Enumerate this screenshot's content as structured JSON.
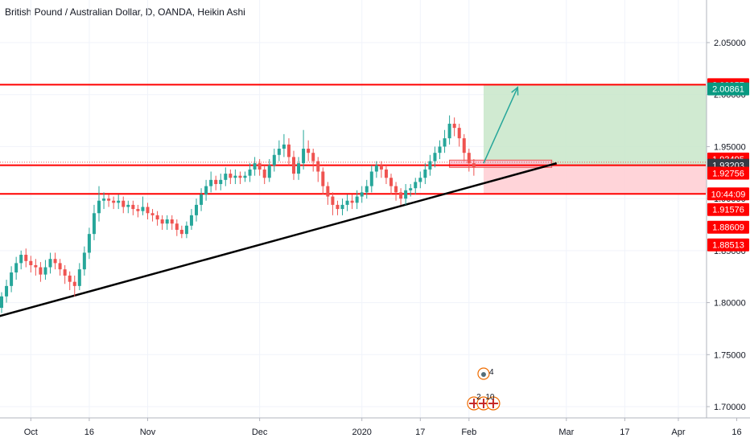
{
  "header": {
    "title": "British Pound / Australian Dollar, D, OANDA, Heikin Ashi"
  },
  "colors": {
    "up": "#26a69a",
    "down": "#ef5350",
    "grid": "#f0f3fa",
    "level": "#ff0000",
    "trend": "#000000",
    "profit_zone": "#c8e6c9",
    "loss_zone": "#ffcdd2",
    "arrow": "#26a69a"
  },
  "chart_data": {
    "type": "candlestick",
    "title": "British Pound / Australian Dollar, D, OANDA, Heikin Ashi",
    "ylim": [
      1.685,
      2.1
    ],
    "y_ticks": [
      "1.70000",
      "1.75000",
      "1.80000",
      "1.85000",
      "1.90000",
      "1.95000",
      "2.00000",
      "2.05000"
    ],
    "y_tick_values": [
      1.7,
      1.75,
      1.8,
      1.85,
      1.9,
      1.95,
      2.0,
      2.05
    ],
    "x_ticks": [
      "Oct",
      "16",
      "Nov",
      "Dec",
      "2020",
      "17",
      "Feb",
      "Mar",
      "17",
      "Apr",
      "16"
    ],
    "x_tick_days": [
      6,
      18,
      30,
      53,
      74,
      86,
      96,
      116,
      128,
      139,
      151
    ],
    "horizontal_levels": [
      2.00957,
      1.93203,
      1.90453
    ],
    "price_labels": [
      {
        "value": "2.00957",
        "y": 2.00957,
        "bg": "#ff0000",
        "fg": "#ffffff"
      },
      {
        "value": "2.00861",
        "y": 2.00861,
        "bg": "#089981",
        "fg": "#ffffff",
        "shift": 1
      },
      {
        "value": "1.93495",
        "y": 1.93495,
        "bg": "#ff0000",
        "fg": "#ffffff",
        "shift": -1
      },
      {
        "value": "1.93203",
        "y": 1.93203,
        "bg": "#363a45",
        "fg": "#ffffff"
      },
      {
        "value": "1.92756",
        "y": 1.92756,
        "bg": "#ff0000",
        "fg": "#ffffff",
        "shift": 1
      },
      {
        "value": "10:44:09",
        "y": 1.90453,
        "bg": "#ff0000",
        "fg": "#ffffff"
      },
      {
        "value": "1.91576",
        "y": 1.8895,
        "bg": "#ff0000",
        "fg": "#ffffff"
      },
      {
        "value": "1.88609",
        "y": 1.8725,
        "bg": "#ff0000",
        "fg": "#ffffff"
      },
      {
        "value": "1.88513",
        "y": 1.8555,
        "bg": "#ff0000",
        "fg": "#ffffff"
      }
    ],
    "trend_line": {
      "from": [
        -2,
        1.785
      ],
      "to": [
        114,
        1.934
      ]
    },
    "trade": {
      "entry": 1.93203,
      "target": 2.00957,
      "stop": 1.90453,
      "start_day": 99,
      "end_day": 152
    },
    "projection_arrow": {
      "from": [
        99,
        1.934
      ],
      "to": [
        106,
        2.007
      ]
    },
    "ha_candles": [
      [
        1.795,
        1.806,
        1.79,
        1.81
      ],
      [
        1.806,
        1.816,
        1.8,
        1.822
      ],
      [
        1.816,
        1.829,
        1.81,
        1.835
      ],
      [
        1.829,
        1.838,
        1.822,
        1.844
      ],
      [
        1.838,
        1.846,
        1.832,
        1.85
      ],
      [
        1.846,
        1.84,
        1.834,
        1.852
      ],
      [
        1.84,
        1.836,
        1.829,
        1.845
      ],
      [
        1.836,
        1.834,
        1.826,
        1.842
      ],
      [
        1.834,
        1.827,
        1.82,
        1.839
      ],
      [
        1.827,
        1.834,
        1.822,
        1.841
      ],
      [
        1.834,
        1.842,
        1.828,
        1.848
      ],
      [
        1.842,
        1.838,
        1.832,
        1.848
      ],
      [
        1.838,
        1.832,
        1.826,
        1.842
      ],
      [
        1.832,
        1.826,
        1.818,
        1.836
      ],
      [
        1.826,
        1.82,
        1.812,
        1.83
      ],
      [
        1.82,
        1.816,
        1.806,
        1.826
      ],
      [
        1.816,
        1.832,
        1.812,
        1.838
      ],
      [
        1.832,
        1.848,
        1.826,
        1.854
      ],
      [
        1.848,
        1.866,
        1.842,
        1.872
      ],
      [
        1.866,
        1.886,
        1.86,
        1.894
      ],
      [
        1.886,
        1.898,
        1.878,
        1.912
      ],
      [
        1.898,
        1.9,
        1.89,
        1.906
      ],
      [
        1.9,
        1.898,
        1.892,
        1.904
      ],
      [
        1.898,
        1.896,
        1.89,
        1.902
      ],
      [
        1.896,
        1.898,
        1.89,
        1.904
      ],
      [
        1.898,
        1.892,
        1.886,
        1.902
      ],
      [
        1.892,
        1.894,
        1.886,
        1.898
      ],
      [
        1.894,
        1.89,
        1.884,
        1.898
      ],
      [
        1.89,
        1.888,
        1.882,
        1.894
      ],
      [
        1.888,
        1.892,
        1.884,
        1.902
      ],
      [
        1.892,
        1.886,
        1.88,
        1.896
      ],
      [
        1.886,
        1.884,
        1.878,
        1.89
      ],
      [
        1.884,
        1.88,
        1.874,
        1.888
      ],
      [
        1.88,
        1.876,
        1.87,
        1.884
      ],
      [
        1.876,
        1.88,
        1.87,
        1.884
      ],
      [
        1.88,
        1.876,
        1.87,
        1.884
      ],
      [
        1.876,
        1.87,
        1.864,
        1.88
      ],
      [
        1.87,
        1.866,
        1.862,
        1.874
      ],
      [
        1.866,
        1.874,
        1.862,
        1.878
      ],
      [
        1.874,
        1.884,
        1.87,
        1.89
      ],
      [
        1.884,
        1.894,
        1.878,
        1.9
      ],
      [
        1.894,
        1.904,
        1.888,
        1.91
      ],
      [
        1.904,
        1.912,
        1.898,
        1.918
      ],
      [
        1.912,
        1.918,
        1.906,
        1.926
      ],
      [
        1.918,
        1.914,
        1.908,
        1.922
      ],
      [
        1.914,
        1.918,
        1.908,
        1.924
      ],
      [
        1.918,
        1.924,
        1.912,
        1.93
      ],
      [
        1.924,
        1.92,
        1.914,
        1.928
      ],
      [
        1.92,
        1.922,
        1.914,
        1.928
      ],
      [
        1.922,
        1.92,
        1.914,
        1.926
      ],
      [
        1.92,
        1.922,
        1.916,
        1.926
      ],
      [
        1.922,
        1.928,
        1.916,
        1.934
      ],
      [
        1.928,
        1.934,
        1.922,
        1.94
      ],
      [
        1.934,
        1.928,
        1.922,
        1.938
      ],
      [
        1.928,
        1.92,
        1.914,
        1.932
      ],
      [
        1.92,
        1.932,
        1.916,
        1.938
      ],
      [
        1.932,
        1.942,
        1.926,
        1.948
      ],
      [
        1.942,
        1.948,
        1.936,
        1.956
      ],
      [
        1.948,
        1.952,
        1.94,
        1.962
      ],
      [
        1.952,
        1.94,
        1.932,
        1.958
      ],
      [
        1.94,
        1.924,
        1.918,
        1.946
      ],
      [
        1.924,
        1.934,
        1.918,
        1.94
      ],
      [
        1.934,
        1.948,
        1.928,
        1.966
      ],
      [
        1.948,
        1.944,
        1.936,
        1.956
      ],
      [
        1.944,
        1.936,
        1.926,
        1.948
      ],
      [
        1.936,
        1.926,
        1.916,
        1.94
      ],
      [
        1.926,
        1.912,
        1.904,
        1.93
      ],
      [
        1.912,
        1.902,
        1.894,
        1.916
      ],
      [
        1.902,
        1.894,
        1.884,
        1.906
      ],
      [
        1.894,
        1.89,
        1.884,
        1.898
      ],
      [
        1.89,
        1.894,
        1.884,
        1.9
      ],
      [
        1.894,
        1.898,
        1.888,
        1.904
      ],
      [
        1.898,
        1.896,
        1.89,
        1.904
      ],
      [
        1.896,
        1.902,
        1.89,
        1.908
      ],
      [
        1.902,
        1.906,
        1.896,
        1.912
      ],
      [
        1.906,
        1.912,
        1.9,
        1.918
      ],
      [
        1.912,
        1.926,
        1.906,
        1.932
      ],
      [
        1.926,
        1.932,
        1.92,
        1.936
      ],
      [
        1.932,
        1.928,
        1.92,
        1.936
      ],
      [
        1.928,
        1.92,
        1.914,
        1.932
      ],
      [
        1.92,
        1.912,
        1.904,
        1.924
      ],
      [
        1.912,
        1.906,
        1.898,
        1.916
      ],
      [
        1.906,
        1.9,
        1.894,
        1.91
      ],
      [
        1.9,
        1.908,
        1.894,
        1.914
      ],
      [
        1.908,
        1.91,
        1.902,
        1.914
      ],
      [
        1.91,
        1.916,
        1.904,
        1.92
      ],
      [
        1.916,
        1.92,
        1.91,
        1.926
      ],
      [
        1.92,
        1.928,
        1.914,
        1.934
      ],
      [
        1.928,
        1.936,
        1.922,
        1.942
      ],
      [
        1.936,
        1.944,
        1.93,
        1.95
      ],
      [
        1.944,
        1.95,
        1.938,
        1.956
      ],
      [
        1.95,
        1.958,
        1.944,
        1.966
      ],
      [
        1.958,
        1.972,
        1.952,
        1.98
      ],
      [
        1.972,
        1.968,
        1.96,
        1.978
      ],
      [
        1.968,
        1.958,
        1.95,
        1.972
      ],
      [
        1.958,
        1.944,
        1.936,
        1.962
      ],
      [
        1.944,
        1.934,
        1.926,
        1.948
      ],
      [
        1.934,
        1.93,
        1.922,
        1.938
      ]
    ]
  },
  "badges": {
    "top_count": "4",
    "bottom_left": "2",
    "bottom_right": "10"
  }
}
